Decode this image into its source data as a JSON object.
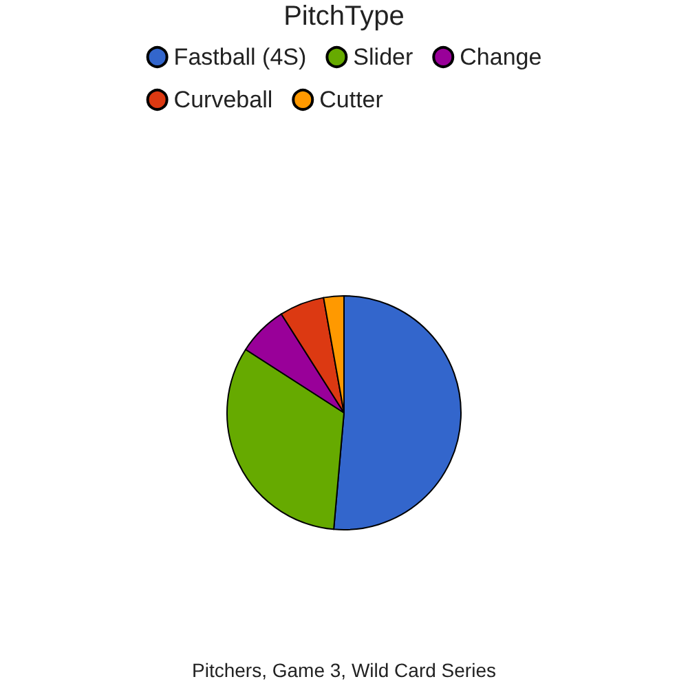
{
  "chart_data": {
    "type": "pie",
    "legend_title": "PitchType",
    "legend": "top",
    "categories": [
      "Fastball (4S)",
      "Slider",
      "Change",
      "Curveball",
      "Cutter"
    ],
    "values": [
      51.4,
      32.7,
      6.9,
      6.2,
      2.8
    ],
    "colors": [
      "#3366cc",
      "#66aa00",
      "#990099",
      "#dc3912",
      "#ff9900"
    ],
    "annotations": [
      "Pitchers, Game 3, Wild Card Series"
    ]
  }
}
